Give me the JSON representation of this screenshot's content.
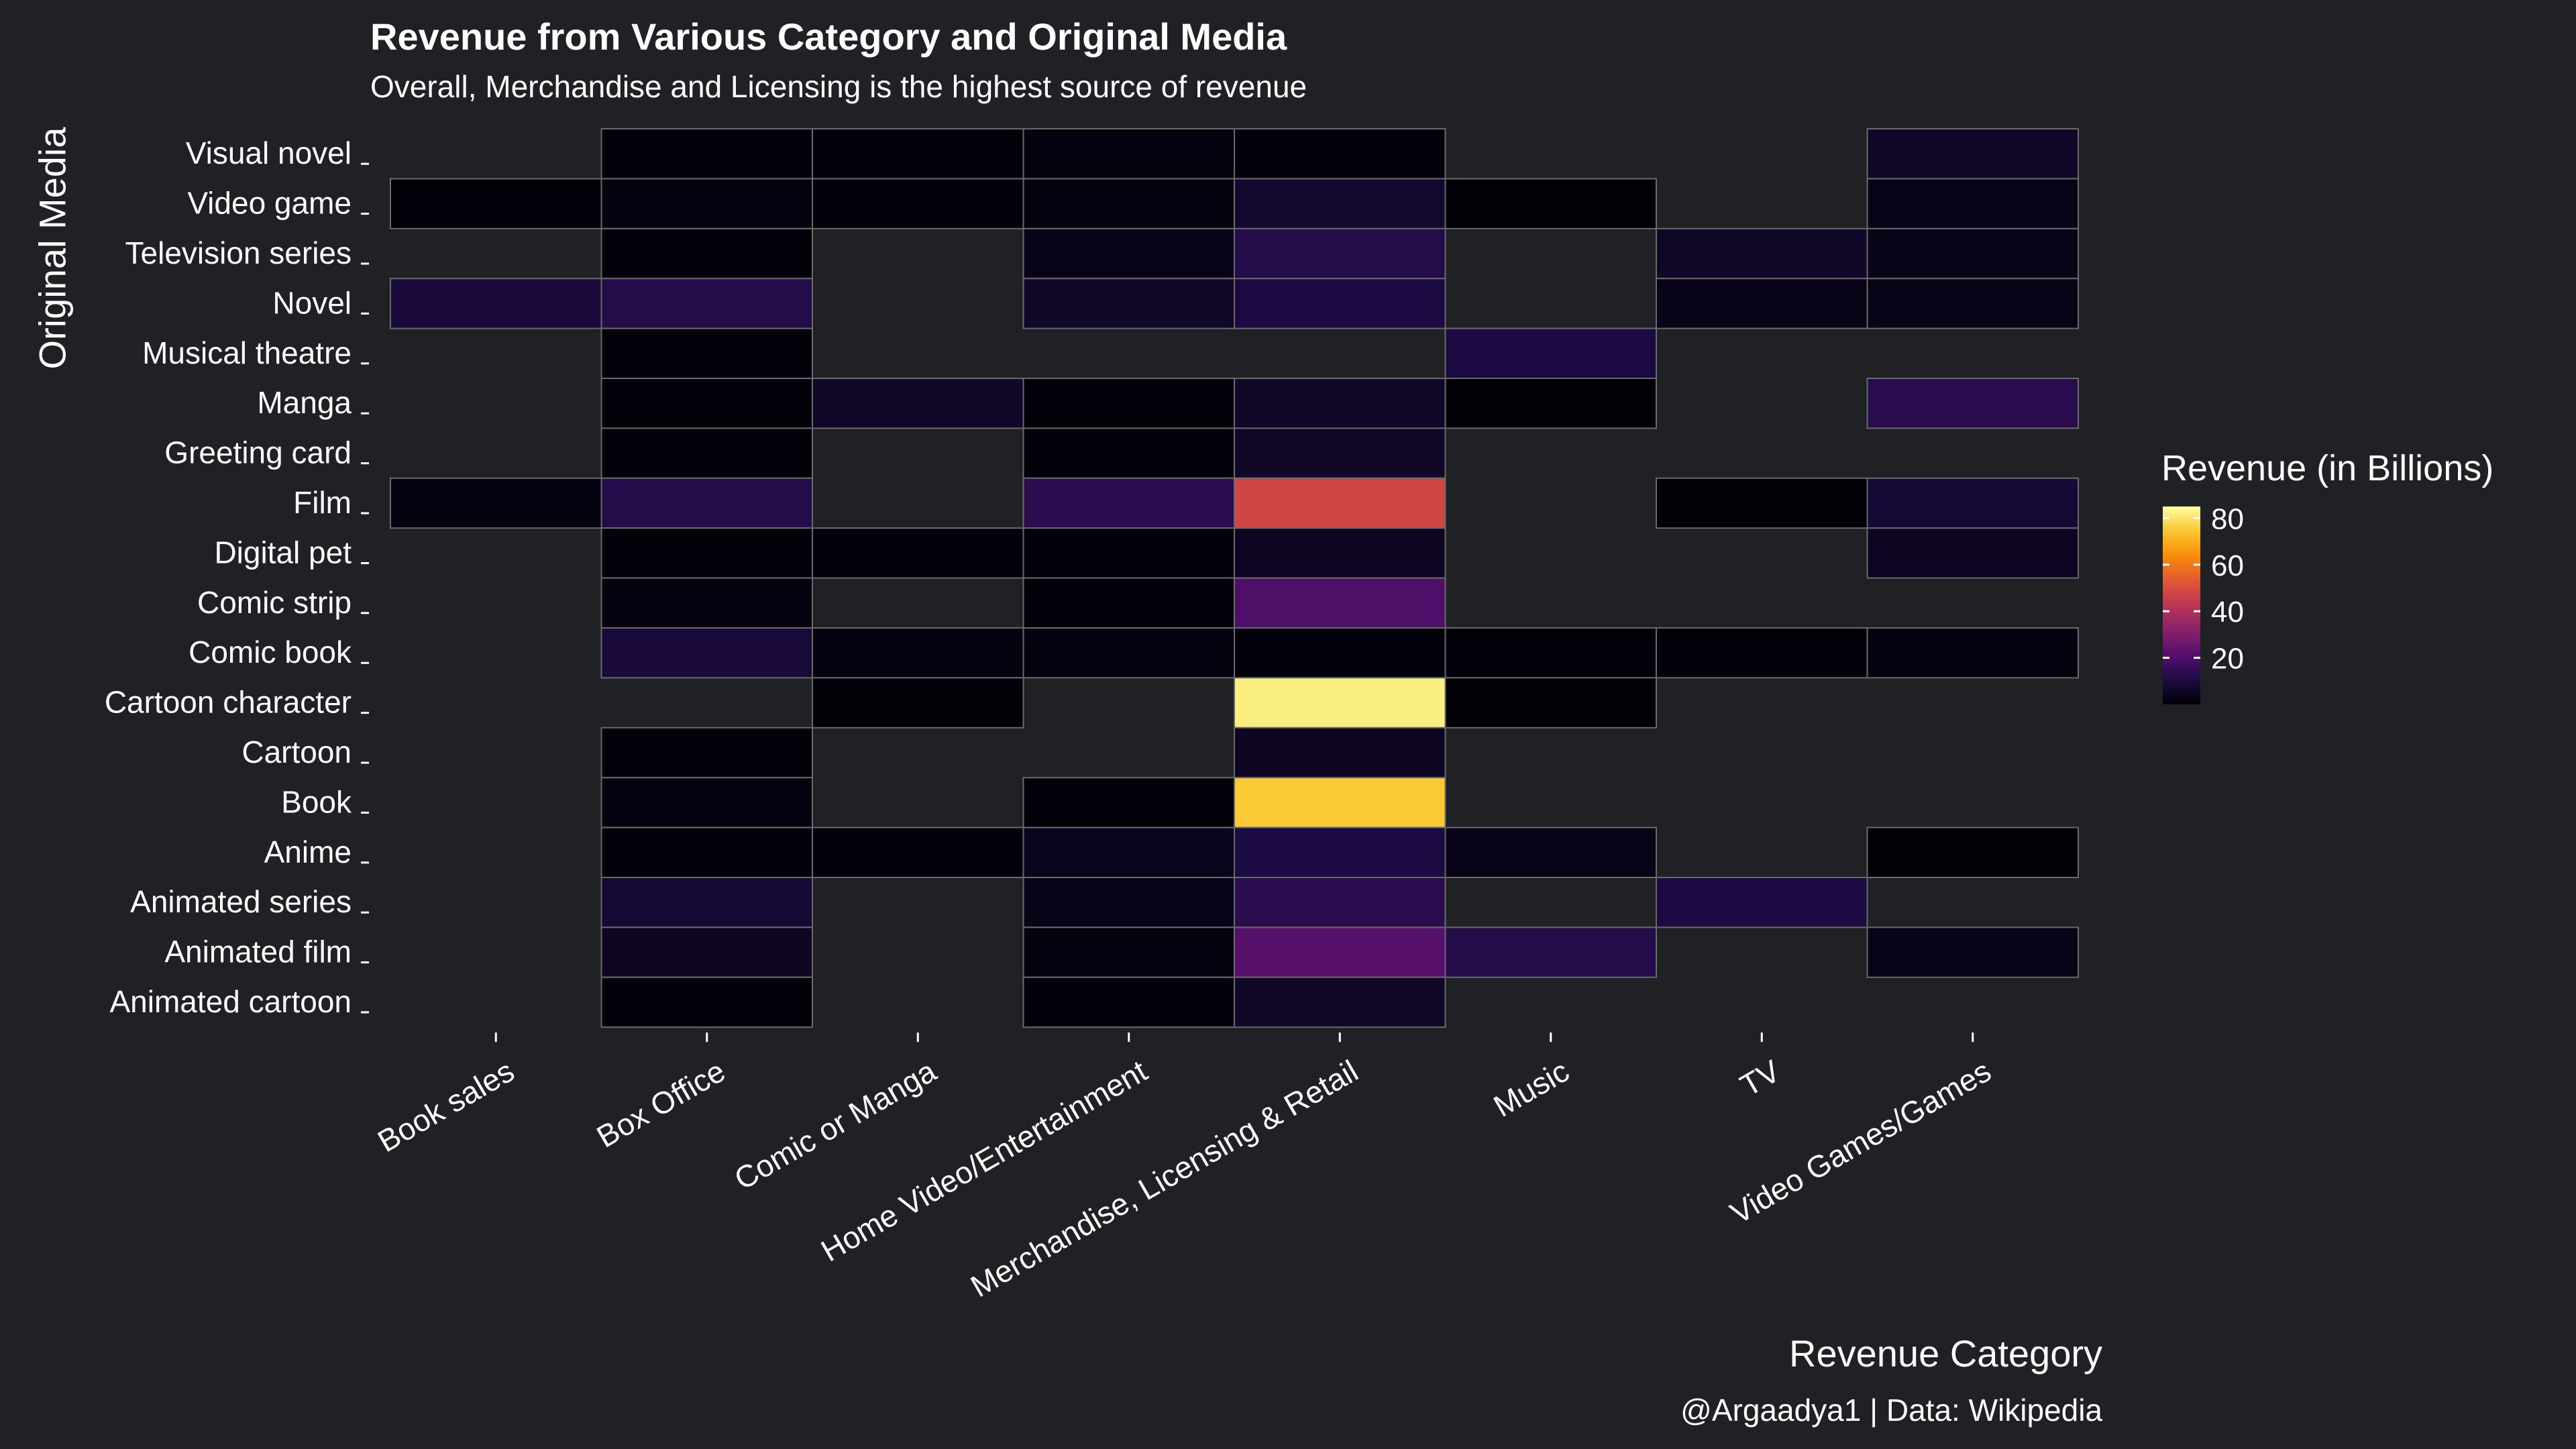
{
  "chart_data": {
    "type": "heatmap",
    "title": "Revenue from Various Category and Original Media",
    "subtitle": "Overall, Merchandise and Licensing is the highest source of revenue",
    "xlabel": "Revenue Category",
    "ylabel": "Original Media",
    "caption": "@Argaadya1 | Data: Wikipedia",
    "legend_title": "Revenue (in Billions)",
    "legend_ticks": [
      80,
      60,
      40,
      20
    ],
    "color_range": [
      0,
      85
    ],
    "x_categories": [
      "Book sales",
      "Box Office",
      "Comic or Manga",
      "Home Video/Entertainment",
      "Merchandise, Licensing & Retail",
      "Music",
      "TV",
      "Video Games/Games"
    ],
    "y_categories": [
      "Visual novel",
      "Video game",
      "Television series",
      "Novel",
      "Musical theatre",
      "Manga",
      "Greeting card",
      "Film",
      "Digital pet",
      "Comic strip",
      "Comic book",
      "Cartoon character",
      "Cartoon",
      "Book",
      "Anime",
      "Animated series",
      "Animated film",
      "Animated cartoon"
    ],
    "cells": [
      {
        "x": "Box Office",
        "y": "Visual novel",
        "value": 1
      },
      {
        "x": "Comic or Manga",
        "y": "Visual novel",
        "value": 1
      },
      {
        "x": "Home Video/Entertainment",
        "y": "Visual novel",
        "value": 2
      },
      {
        "x": "Merchandise, Licensing & Retail",
        "y": "Visual novel",
        "value": 1
      },
      {
        "x": "Video Games/Games",
        "y": "Visual novel",
        "value": 6
      },
      {
        "x": "Book sales",
        "y": "Video game",
        "value": 1
      },
      {
        "x": "Box Office",
        "y": "Video game",
        "value": 2
      },
      {
        "x": "Comic or Manga",
        "y": "Video game",
        "value": 1
      },
      {
        "x": "Home Video/Entertainment",
        "y": "Video game",
        "value": 2
      },
      {
        "x": "Merchandise, Licensing & Retail",
        "y": "Video game",
        "value": 7
      },
      {
        "x": "Music",
        "y": "Video game",
        "value": 0.5
      },
      {
        "x": "Video Games/Games",
        "y": "Video game",
        "value": 3
      },
      {
        "x": "Box Office",
        "y": "Television series",
        "value": 1
      },
      {
        "x": "Home Video/Entertainment",
        "y": "Television series",
        "value": 3
      },
      {
        "x": "Merchandise, Licensing & Retail",
        "y": "Television series",
        "value": 12
      },
      {
        "x": "TV",
        "y": "Television series",
        "value": 6
      },
      {
        "x": "Video Games/Games",
        "y": "Television series",
        "value": 3
      },
      {
        "x": "Book sales",
        "y": "Novel",
        "value": 9
      },
      {
        "x": "Box Office",
        "y": "Novel",
        "value": 12
      },
      {
        "x": "Home Video/Entertainment",
        "y": "Novel",
        "value": 6
      },
      {
        "x": "Merchandise, Licensing & Retail",
        "y": "Novel",
        "value": 10
      },
      {
        "x": "TV",
        "y": "Novel",
        "value": 3
      },
      {
        "x": "Video Games/Games",
        "y": "Novel",
        "value": 3
      },
      {
        "x": "Box Office",
        "y": "Musical theatre",
        "value": 1
      },
      {
        "x": "Music",
        "y": "Musical theatre",
        "value": 10
      },
      {
        "x": "Box Office",
        "y": "Manga",
        "value": 1
      },
      {
        "x": "Comic or Manga",
        "y": "Manga",
        "value": 6
      },
      {
        "x": "Home Video/Entertainment",
        "y": "Manga",
        "value": 1
      },
      {
        "x": "Merchandise, Licensing & Retail",
        "y": "Manga",
        "value": 6
      },
      {
        "x": "Music",
        "y": "Manga",
        "value": 0.5
      },
      {
        "x": "Video Games/Games",
        "y": "Manga",
        "value": 13
      },
      {
        "x": "Box Office",
        "y": "Greeting card",
        "value": 1
      },
      {
        "x": "Home Video/Entertainment",
        "y": "Greeting card",
        "value": 1
      },
      {
        "x": "Merchandise, Licensing & Retail",
        "y": "Greeting card",
        "value": 6
      },
      {
        "x": "Book sales",
        "y": "Film",
        "value": 2
      },
      {
        "x": "Box Office",
        "y": "Film",
        "value": 12
      },
      {
        "x": "Home Video/Entertainment",
        "y": "Film",
        "value": 13
      },
      {
        "x": "Merchandise, Licensing & Retail",
        "y": "Film",
        "value": 48
      },
      {
        "x": "TV",
        "y": "Film",
        "value": 0.5
      },
      {
        "x": "Video Games/Games",
        "y": "Film",
        "value": 8
      },
      {
        "x": "Box Office",
        "y": "Digital pet",
        "value": 1
      },
      {
        "x": "Comic or Manga",
        "y": "Digital pet",
        "value": 1
      },
      {
        "x": "Home Video/Entertainment",
        "y": "Digital pet",
        "value": 1
      },
      {
        "x": "Merchandise, Licensing & Retail",
        "y": "Digital pet",
        "value": 5
      },
      {
        "x": "Video Games/Games",
        "y": "Digital pet",
        "value": 5
      },
      {
        "x": "Box Office",
        "y": "Comic strip",
        "value": 2
      },
      {
        "x": "Home Video/Entertainment",
        "y": "Comic strip",
        "value": 1
      },
      {
        "x": "Merchandise, Licensing & Retail",
        "y": "Comic strip",
        "value": 20
      },
      {
        "x": "Box Office",
        "y": "Comic book",
        "value": 9
      },
      {
        "x": "Comic or Manga",
        "y": "Comic book",
        "value": 2
      },
      {
        "x": "Home Video/Entertainment",
        "y": "Comic book",
        "value": 2
      },
      {
        "x": "Merchandise, Licensing & Retail",
        "y": "Comic book",
        "value": 1
      },
      {
        "x": "Music",
        "y": "Comic book",
        "value": 1
      },
      {
        "x": "TV",
        "y": "Comic book",
        "value": 1
      },
      {
        "x": "Video Games/Games",
        "y": "Comic book",
        "value": 2
      },
      {
        "x": "Comic or Manga",
        "y": "Cartoon character",
        "value": 0.5
      },
      {
        "x": "Merchandise, Licensing & Retail",
        "y": "Cartoon character",
        "value": 82
      },
      {
        "x": "Music",
        "y": "Cartoon character",
        "value": 0.5
      },
      {
        "x": "Box Office",
        "y": "Cartoon",
        "value": 1
      },
      {
        "x": "Merchandise, Licensing & Retail",
        "y": "Cartoon",
        "value": 5
      },
      {
        "x": "Box Office",
        "y": "Book",
        "value": 2
      },
      {
        "x": "Home Video/Entertainment",
        "y": "Book",
        "value": 1
      },
      {
        "x": "Merchandise, Licensing & Retail",
        "y": "Book",
        "value": 75
      },
      {
        "x": "Box Office",
        "y": "Anime",
        "value": 1
      },
      {
        "x": "Comic or Manga",
        "y": "Anime",
        "value": 1
      },
      {
        "x": "Home Video/Entertainment",
        "y": "Anime",
        "value": 4
      },
      {
        "x": "Merchandise, Licensing & Retail",
        "y": "Anime",
        "value": 10
      },
      {
        "x": "Music",
        "y": "Anime",
        "value": 3
      },
      {
        "x": "Video Games/Games",
        "y": "Anime",
        "value": 0.5
      },
      {
        "x": "Box Office",
        "y": "Animated series",
        "value": 8
      },
      {
        "x": "Home Video/Entertainment",
        "y": "Animated series",
        "value": 3
      },
      {
        "x": "Merchandise, Licensing & Retail",
        "y": "Animated series",
        "value": 13
      },
      {
        "x": "TV",
        "y": "Animated series",
        "value": 10
      },
      {
        "x": "Box Office",
        "y": "Animated film",
        "value": 5
      },
      {
        "x": "Home Video/Entertainment",
        "y": "Animated film",
        "value": 2
      },
      {
        "x": "Merchandise, Licensing & Retail",
        "y": "Animated film",
        "value": 22
      },
      {
        "x": "Music",
        "y": "Animated film",
        "value": 12
      },
      {
        "x": "Video Games/Games",
        "y": "Animated film",
        "value": 3
      },
      {
        "x": "Box Office",
        "y": "Animated cartoon",
        "value": 1
      },
      {
        "x": "Home Video/Entertainment",
        "y": "Animated cartoon",
        "value": 1
      },
      {
        "x": "Merchandise, Licensing & Retail",
        "y": "Animated cartoon",
        "value": 6
      }
    ]
  }
}
